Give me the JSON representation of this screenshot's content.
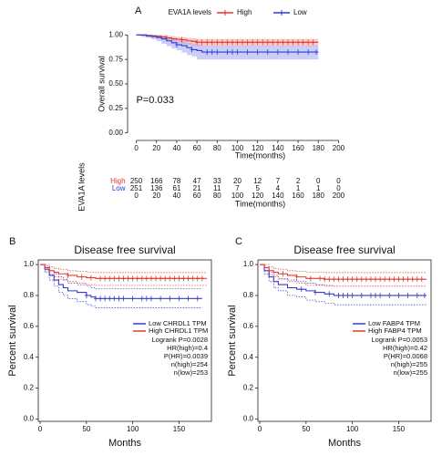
{
  "chart_data": [
    {
      "type": "km",
      "panel": "A",
      "legend_title": "EVA1A levels",
      "ylabel": "Overall survival",
      "xlabel": "Time(months)",
      "annotation": "P=0.033",
      "band_style": "fill",
      "box": false,
      "legend_position": "top",
      "xlim": [
        -5,
        205
      ],
      "xticks": [
        0,
        20,
        40,
        60,
        80,
        100,
        120,
        140,
        160,
        180,
        200
      ],
      "ylim": [
        -0.04,
        1.04
      ],
      "yticks": [
        {
          "value": 0,
          "label": "0.00"
        },
        {
          "value": 0.25,
          "label": "0.25"
        },
        {
          "value": 0.5,
          "label": "0.50"
        },
        {
          "value": 0.75,
          "label": "0.75"
        },
        {
          "value": 1,
          "label": "1.00"
        }
      ],
      "series": [
        {
          "name": "High",
          "color": "#e8332d",
          "band_color": "#f2a0a0",
          "x": [
            0,
            5,
            10,
            15,
            20,
            25,
            30,
            35,
            40,
            45,
            50,
            55,
            60,
            180
          ],
          "y": [
            1,
            1,
            0.995,
            0.99,
            0.985,
            0.98,
            0.97,
            0.96,
            0.955,
            0.95,
            0.94,
            0.935,
            0.925,
            0.925
          ],
          "lower": [
            1,
            1,
            0.985,
            0.975,
            0.968,
            0.96,
            0.948,
            0.937,
            0.93,
            0.922,
            0.91,
            0.9,
            0.885,
            0.885
          ],
          "upper": [
            1,
            1,
            1,
            1,
            1,
            0.998,
            0.99,
            0.985,
            0.98,
            0.977,
            0.97,
            0.966,
            0.96,
            0.96
          ],
          "censored": [
            30,
            45,
            60,
            65,
            70,
            75,
            80,
            85,
            90,
            95,
            100,
            105,
            110,
            115,
            120,
            125,
            130,
            135,
            140,
            145,
            150,
            155,
            160,
            165,
            170,
            175
          ]
        },
        {
          "name": "Low",
          "color": "#2c3ad6",
          "band_color": "#a0a6ee",
          "x": [
            0,
            5,
            10,
            15,
            20,
            25,
            30,
            35,
            40,
            45,
            50,
            55,
            60,
            65,
            180
          ],
          "y": [
            1,
            1,
            0.99,
            0.985,
            0.975,
            0.96,
            0.94,
            0.92,
            0.9,
            0.89,
            0.87,
            0.85,
            0.84,
            0.825,
            0.825
          ],
          "lower": [
            1,
            1,
            0.978,
            0.97,
            0.955,
            0.935,
            0.91,
            0.885,
            0.86,
            0.845,
            0.82,
            0.795,
            0.78,
            0.75,
            0.75
          ],
          "upper": [
            1,
            1,
            1,
            1,
            0.995,
            0.985,
            0.97,
            0.955,
            0.94,
            0.935,
            0.92,
            0.905,
            0.9,
            0.89,
            0.89
          ],
          "censored": [
            40,
            55,
            70,
            75,
            80,
            90,
            95,
            100,
            110,
            120,
            130,
            140,
            150,
            160,
            170,
            178
          ]
        }
      ],
      "risk_table": {
        "ylabel": "EVA1A levels",
        "xlabel": "Time(months)",
        "rows": [
          {
            "name": "High",
            "color": "#e8332d",
            "values": [
              250,
              166,
              78,
              47,
              33,
              20,
              12,
              7,
              2,
              0,
              0
            ]
          },
          {
            "name": "Low",
            "color": "#2c3ad6",
            "values": [
              251,
              136,
              61,
              21,
              11,
              7,
              5,
              4,
              1,
              1,
              0
            ]
          }
        ]
      }
    },
    {
      "type": "km",
      "panel": "B",
      "title": "Disease free survival",
      "ylabel": "Percent survival",
      "xlabel": "Months",
      "band_style": "dotted",
      "box": true,
      "legend_position": "right",
      "xlim": [
        -2,
        185
      ],
      "xticks": [
        0,
        50,
        100,
        150
      ],
      "ylim": [
        -0.015,
        1.03
      ],
      "yticks": [
        {
          "value": 0,
          "label": "0.0"
        },
        0.2,
        0.4,
        0.6,
        0.8,
        {
          "value": 1,
          "label": "1.0"
        }
      ],
      "stats": [
        "Logrank P=0.0028",
        "HR(high)=0.4",
        "P(HR)=0.0039",
        "n(high)=254",
        "n(low)=253"
      ],
      "series": [
        {
          "name": "Low CHRDL1 TPM",
          "color": "#3a3ac8",
          "x": [
            0,
            5,
            10,
            15,
            20,
            25,
            30,
            40,
            50,
            55,
            60,
            175
          ],
          "y": [
            1,
            0.97,
            0.93,
            0.9,
            0.87,
            0.85,
            0.83,
            0.82,
            0.8,
            0.79,
            0.78,
            0.78
          ],
          "lower": [
            1,
            0.95,
            0.9,
            0.86,
            0.82,
            0.8,
            0.78,
            0.76,
            0.74,
            0.73,
            0.72,
            0.72
          ],
          "upper": [
            1,
            0.99,
            0.96,
            0.94,
            0.92,
            0.9,
            0.88,
            0.87,
            0.86,
            0.85,
            0.845,
            0.845
          ],
          "censored": [
            50,
            60,
            65,
            70,
            75,
            80,
            85,
            90,
            100,
            110,
            115,
            120,
            130,
            140,
            150,
            160,
            170
          ]
        },
        {
          "name": "High CHRDL1 TPM",
          "color": "#e03a2f",
          "x": [
            0,
            5,
            10,
            15,
            20,
            30,
            40,
            50,
            60,
            180
          ],
          "y": [
            1,
            0.98,
            0.96,
            0.95,
            0.94,
            0.93,
            0.92,
            0.915,
            0.91,
            0.91
          ],
          "lower": [
            1,
            0.96,
            0.935,
            0.92,
            0.905,
            0.89,
            0.88,
            0.87,
            0.865,
            0.865
          ],
          "upper": [
            1,
            1,
            0.985,
            0.975,
            0.97,
            0.96,
            0.955,
            0.95,
            0.948,
            0.948
          ],
          "censored": [
            30,
            45,
            55,
            65,
            70,
            75,
            80,
            85,
            90,
            95,
            100,
            105,
            110,
            115,
            120,
            125,
            130,
            135,
            140,
            145,
            150,
            155,
            160,
            165,
            170,
            175
          ]
        }
      ]
    },
    {
      "type": "km",
      "panel": "C",
      "title": "Disease free survival",
      "ylabel": "Percent survival",
      "xlabel": "Months",
      "band_style": "dotted",
      "box": true,
      "legend_position": "right",
      "xlim": [
        -2,
        185
      ],
      "xticks": [
        0,
        50,
        100,
        150
      ],
      "ylim": [
        -0.015,
        1.03
      ],
      "yticks": [
        {
          "value": 0,
          "label": "0.0"
        },
        0.2,
        0.4,
        0.6,
        0.8,
        {
          "value": 1,
          "label": "1.0"
        }
      ],
      "stats": [
        "Logrank P=0.0053",
        "HR(high)=0.42",
        "P(HR)=0.0068",
        "n(high)=255",
        "n(low)=255"
      ],
      "series": [
        {
          "name": "Low FABP4 TPM",
          "color": "#3a3ac8",
          "x": [
            0,
            5,
            10,
            15,
            20,
            30,
            40,
            50,
            60,
            70,
            80,
            180
          ],
          "y": [
            1,
            0.96,
            0.92,
            0.89,
            0.87,
            0.85,
            0.84,
            0.83,
            0.82,
            0.81,
            0.8,
            0.8
          ],
          "lower": [
            1,
            0.94,
            0.89,
            0.85,
            0.83,
            0.8,
            0.79,
            0.77,
            0.76,
            0.75,
            0.74,
            0.74
          ],
          "upper": [
            1,
            0.98,
            0.95,
            0.93,
            0.91,
            0.9,
            0.89,
            0.88,
            0.87,
            0.865,
            0.86,
            0.86
          ],
          "censored": [
            45,
            60,
            75,
            85,
            90,
            95,
            100,
            110,
            120,
            125,
            130,
            140,
            150,
            160,
            170,
            178
          ]
        },
        {
          "name": "High FABP4 TPM",
          "color": "#e03a2f",
          "x": [
            0,
            5,
            10,
            15,
            20,
            30,
            40,
            50,
            60,
            70,
            180
          ],
          "y": [
            1,
            0.98,
            0.96,
            0.95,
            0.94,
            0.93,
            0.92,
            0.91,
            0.91,
            0.905,
            0.905
          ],
          "lower": [
            1,
            0.96,
            0.935,
            0.92,
            0.905,
            0.89,
            0.88,
            0.865,
            0.865,
            0.86,
            0.86
          ],
          "upper": [
            1,
            1,
            0.985,
            0.975,
            0.97,
            0.96,
            0.955,
            0.95,
            0.95,
            0.948,
            0.948
          ],
          "censored": [
            25,
            40,
            55,
            65,
            70,
            75,
            80,
            85,
            90,
            95,
            100,
            105,
            110,
            115,
            120,
            125,
            130,
            135,
            140,
            145,
            150,
            155,
            160,
            165,
            170,
            175
          ]
        }
      ]
    }
  ]
}
